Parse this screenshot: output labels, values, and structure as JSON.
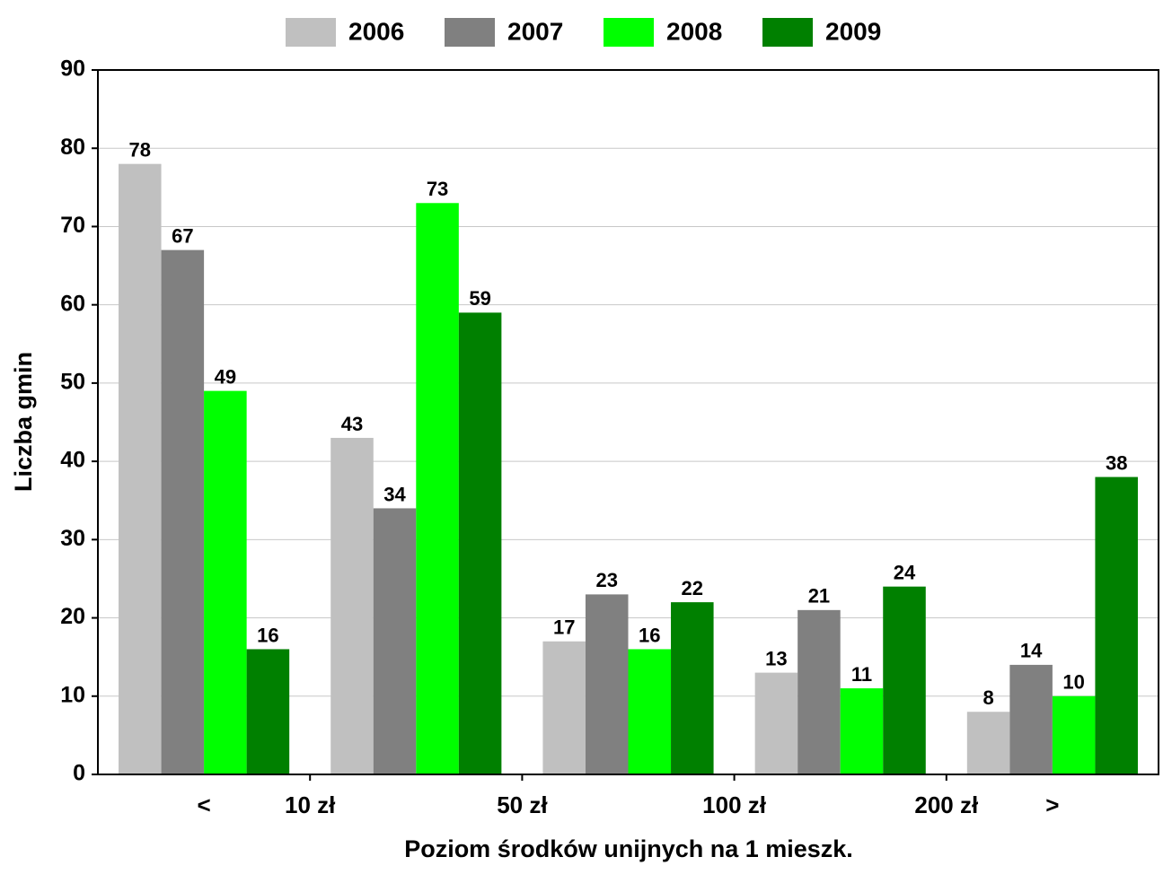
{
  "chart_data": {
    "type": "bar",
    "x_label": "Poziom środków unijnych na 1 mieszk.",
    "y_label": "Liczba gmin",
    "categories": [
      null,
      null,
      null,
      null,
      null
    ],
    "xlim": [
      -0.5,
      4.5
    ],
    "xticks": [
      {
        "value": 0,
        "label": "<"
      },
      {
        "value": 0.5,
        "label": "10 zł"
      },
      {
        "value": 1.5,
        "label": "50 zł"
      },
      {
        "value": 2.5,
        "label": "100 zł"
      },
      {
        "value": 3.5,
        "label": "200 zł"
      },
      {
        "value": 4,
        "label": ">"
      }
    ],
    "ylim": [
      0,
      90
    ],
    "yticks": [
      0,
      10,
      20,
      30,
      40,
      50,
      60,
      70,
      80,
      90
    ],
    "grid": true,
    "legend": "top",
    "series": [
      {
        "name": "2006",
        "color": "#c0c0c0",
        "values": [
          78,
          43,
          17,
          13,
          8
        ]
      },
      {
        "name": "2007",
        "color": "#808080",
        "values": [
          67,
          34,
          23,
          21,
          14
        ]
      },
      {
        "name": "2008",
        "color": "#00ff00",
        "values": [
          49,
          73,
          16,
          11,
          10
        ]
      },
      {
        "name": "2009",
        "color": "#008000",
        "values": [
          16,
          59,
          22,
          24,
          38
        ]
      }
    ]
  }
}
